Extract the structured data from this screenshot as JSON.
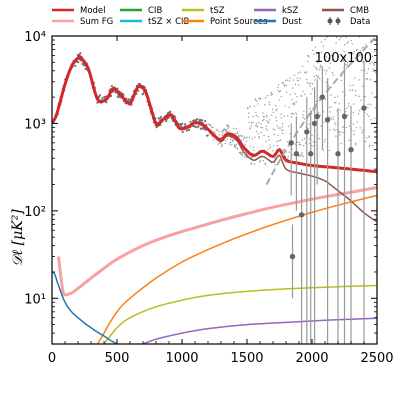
{
  "chart_data": {
    "type": "line",
    "panel_label": "100x100",
    "ylabel": "𝒟ℓ [μK²]",
    "xlabel": "",
    "xlim": [
      0,
      2500
    ],
    "ylim_log": [
      3,
      10000
    ],
    "yscale": "log",
    "grid": false,
    "legend_placement": "top",
    "x_ticks": [
      0,
      500,
      1000,
      1500,
      2000,
      2500
    ],
    "x_tick_labels": [
      "0",
      "500",
      "1000",
      "1500",
      "2000",
      "2500"
    ],
    "y_ticks": [
      10,
      100,
      1000,
      10000
    ],
    "y_tick_labels": [
      "10¹",
      "10²",
      "10³",
      "10⁴"
    ],
    "legend": [
      {
        "label": "Model",
        "color": "#d62728",
        "kind": "line"
      },
      {
        "label": "CIB",
        "color": "#2ca02c",
        "kind": "line"
      },
      {
        "label": "tSZ",
        "color": "#bcbd22",
        "kind": "line"
      },
      {
        "label": "kSZ",
        "color": "#9467bd",
        "kind": "line"
      },
      {
        "label": "CMB",
        "color": "#8c564b",
        "kind": "line"
      },
      {
        "label": "Sum FG",
        "color": "#f7a1a1",
        "kind": "line"
      },
      {
        "label": "tSZ × CIB",
        "color": "#17becf",
        "kind": "line"
      },
      {
        "label": "Point Sources",
        "color": "#ff7f0e",
        "kind": "line"
      },
      {
        "label": "Dust",
        "color": "#1f77b4",
        "kind": "line"
      },
      {
        "label": "Data",
        "color": "#555555",
        "kind": "errorbar"
      }
    ],
    "series": [
      {
        "name": "Sum FG",
        "color": "#f7a1a1",
        "width": 3,
        "x": [
          50,
          80,
          100,
          150,
          200,
          300,
          400,
          500,
          700,
          900,
          1100,
          1300,
          1500,
          1700,
          1900,
          2100,
          2300,
          2500
        ],
        "y": [
          30,
          13,
          11,
          11.5,
          13,
          17,
          22,
          28,
          40,
          52,
          64,
          78,
          93,
          110,
          127,
          145,
          163,
          185
        ]
      },
      {
        "name": "Point Sources",
        "color": "#ff7f0e",
        "width": 1.5,
        "x": [
          200,
          300,
          400,
          500,
          600,
          800,
          1000,
          1200,
          1400,
          1600,
          1800,
          2000,
          2200,
          2400,
          2500
        ],
        "y": [
          0.5,
          2,
          4,
          7,
          10,
          17,
          26,
          36,
          48,
          62,
          78,
          96,
          116,
          138,
          150
        ]
      },
      {
        "name": "tSZ",
        "color": "#bcbd22",
        "width": 1.5,
        "x": [
          400,
          500,
          600,
          800,
          1000,
          1200,
          1500,
          1800,
          2100,
          2500
        ],
        "y": [
          3,
          4.6,
          6,
          8,
          9.5,
          10.8,
          12,
          12.8,
          13.4,
          14
        ]
      },
      {
        "name": "kSZ",
        "color": "#9467bd",
        "width": 1.5,
        "x": [
          700,
          800,
          1000,
          1200,
          1500,
          1800,
          2100,
          2500
        ],
        "y": [
          3,
          3.4,
          4,
          4.5,
          5,
          5.3,
          5.6,
          5.9
        ]
      },
      {
        "name": "Dust",
        "color": "#1f77b4",
        "width": 1.5,
        "x": [
          0,
          20,
          50,
          100,
          150,
          200,
          250,
          300,
          350,
          400,
          450,
          500
        ],
        "y": [
          20,
          19,
          14,
          9,
          7,
          6,
          5.2,
          4.6,
          4.1,
          3.7,
          3.3,
          3.0
        ]
      },
      {
        "name": "CMB",
        "color": "#8c564b",
        "width": 1.5,
        "x": [
          0,
          30,
          60,
          100,
          150,
          200,
          220,
          280,
          350,
          420,
          470,
          530,
          600,
          660,
          720,
          800,
          850,
          920,
          980,
          1050,
          1100,
          1170,
          1250,
          1300,
          1350,
          1420,
          1480,
          1550,
          1620,
          1700,
          1750,
          1800,
          1900,
          2000,
          2100,
          2200,
          2300,
          2400,
          2500
        ],
        "y": [
          1000,
          1200,
          1700,
          2800,
          4500,
          5600,
          5700,
          4200,
          1900,
          1900,
          2500,
          2100,
          1700,
          2600,
          2300,
          1000,
          1100,
          1250,
          880,
          900,
          1000,
          920,
          700,
          620,
          720,
          640,
          460,
          380,
          420,
          360,
          430,
          300,
          270,
          250,
          220,
          170,
          130,
          95,
          75
        ]
      },
      {
        "name": "Model",
        "color": "#d62728",
        "width": 3,
        "x": [
          0,
          30,
          60,
          100,
          150,
          200,
          220,
          280,
          350,
          420,
          470,
          530,
          600,
          660,
          720,
          800,
          850,
          920,
          980,
          1050,
          1100,
          1170,
          1250,
          1300,
          1350,
          1420,
          1480,
          1550,
          1620,
          1700,
          1750,
          1800,
          1900,
          2000,
          2100,
          2200,
          2300,
          2400,
          2500
        ],
        "y": [
          1000,
          1200,
          1700,
          2800,
          4500,
          5600,
          5700,
          4200,
          1900,
          1900,
          2500,
          2100,
          1700,
          2600,
          2300,
          1000,
          1100,
          1250,
          880,
          920,
          1020,
          940,
          720,
          650,
          760,
          690,
          520,
          430,
          480,
          420,
          500,
          380,
          350,
          330,
          320,
          310,
          300,
          290,
          280
        ]
      }
    ],
    "noisy_data_trend": {
      "name": "Data (unbinned)",
      "color": "#888888",
      "x": [
        1200,
        1500,
        1800,
        2000,
        2200,
        2500
      ],
      "y": [
        700,
        800,
        1200,
        2000,
        3000,
        4500
      ]
    },
    "dashed_line": {
      "name": "noise",
      "color": "#aaaaaa",
      "x": [
        1650,
        1800,
        2000,
        2200,
        2400,
        2500
      ],
      "y": [
        200,
        500,
        1400,
        3300,
        7000,
        10000
      ]
    },
    "binned_data": {
      "name": "Data",
      "color": "#666666",
      "points": [
        {
          "x": 1840,
          "y": 600,
          "lo": 150,
          "hi": 1000
        },
        {
          "x": 1850,
          "y": 30,
          "lo": 10,
          "hi": 70
        },
        {
          "x": 1880,
          "y": 450,
          "lo": 100,
          "hi": 1200
        },
        {
          "x": 1920,
          "y": 90,
          "lo": 3,
          "hi": 300
        },
        {
          "x": 1960,
          "y": 800,
          "lo": 3,
          "hi": 2000
        },
        {
          "x": 1990,
          "y": 450,
          "lo": 3,
          "hi": 1400
        },
        {
          "x": 2020,
          "y": 1000,
          "lo": 3,
          "hi": 2600
        },
        {
          "x": 2040,
          "y": 1200,
          "lo": 200,
          "hi": 3200
        },
        {
          "x": 2080,
          "y": 2000,
          "lo": 500,
          "hi": 4500
        },
        {
          "x": 2120,
          "y": 1100,
          "lo": 3,
          "hi": 3300
        },
        {
          "x": 2200,
          "y": 450,
          "lo": 3,
          "hi": 1500
        },
        {
          "x": 2250,
          "y": 1200,
          "lo": 3,
          "hi": 5000
        },
        {
          "x": 2300,
          "y": 500,
          "lo": 3,
          "hi": 1600
        },
        {
          "x": 2400,
          "y": 1500,
          "lo": 3,
          "hi": 5200
        }
      ]
    }
  }
}
